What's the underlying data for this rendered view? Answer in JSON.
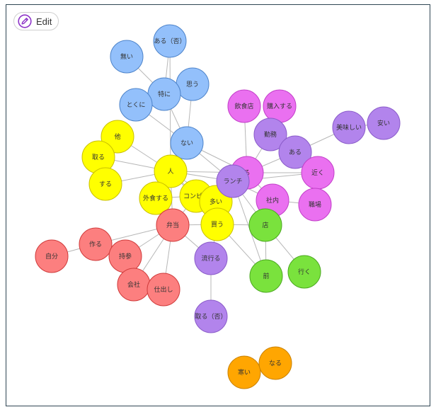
{
  "toolbar": {
    "edit_label": "Edit",
    "edit_icon": "pencil-icon"
  },
  "palette": {
    "blue": "#93c0fb",
    "yellow": "#ffff00",
    "red": "#fc7f7f",
    "purple": "#b284ec",
    "pink": "#ea70f0",
    "green": "#7ae23d",
    "orange": "#ffa601",
    "edge": "#b7b7b7"
  },
  "nodes": [
    {
      "id": "naii",
      "label": "無い",
      "group": "blue"
    },
    {
      "id": "aru_noun",
      "label": "ある（否）",
      "group": "blue"
    },
    {
      "id": "omou",
      "label": "思う",
      "group": "blue"
    },
    {
      "id": "tokuni_k",
      "label": "特に",
      "group": "blue"
    },
    {
      "id": "tokuni",
      "label": "とくに",
      "group": "blue"
    },
    {
      "id": "nai",
      "label": "ない",
      "group": "blue"
    },
    {
      "id": "inshokuten",
      "label": "飲食店",
      "group": "pink"
    },
    {
      "id": "kounyu",
      "label": "購入する",
      "group": "pink"
    },
    {
      "id": "kinmu",
      "label": "勤務",
      "group": "purple"
    },
    {
      "id": "aru",
      "label": "ある",
      "group": "purple"
    },
    {
      "id": "oishii",
      "label": "美味しい",
      "group": "purple"
    },
    {
      "id": "yasui",
      "label": "安い",
      "group": "purple"
    },
    {
      "id": "hoka",
      "label": "他",
      "group": "yellow"
    },
    {
      "id": "toru",
      "label": "取る",
      "group": "yellow"
    },
    {
      "id": "suru",
      "label": "する",
      "group": "yellow"
    },
    {
      "id": "hito",
      "label": "人",
      "group": "yellow"
    },
    {
      "id": "gaishoku",
      "label": "外食する",
      "group": "yellow"
    },
    {
      "id": "konbini",
      "label": "コンビニ",
      "group": "yellow"
    },
    {
      "id": "ooi",
      "label": "多い",
      "group": "yellow"
    },
    {
      "id": "kau",
      "label": "買う",
      "group": "yellow"
    },
    {
      "id": "iru",
      "label": "る",
      "group": "pink"
    },
    {
      "id": "lunch",
      "label": "ランチ",
      "group": "purple"
    },
    {
      "id": "chikaku",
      "label": "近く",
      "group": "pink"
    },
    {
      "id": "shanai",
      "label": "社内",
      "group": "pink"
    },
    {
      "id": "shokuba",
      "label": "職場",
      "group": "pink"
    },
    {
      "id": "mise",
      "label": "店",
      "group": "green"
    },
    {
      "id": "mae",
      "label": "前",
      "group": "green"
    },
    {
      "id": "iku",
      "label": "行く",
      "group": "green"
    },
    {
      "id": "bento",
      "label": "弁当",
      "group": "red"
    },
    {
      "id": "tsukuru",
      "label": "作る",
      "group": "red"
    },
    {
      "id": "jibun",
      "label": "自分",
      "group": "red"
    },
    {
      "id": "jisan",
      "label": "持参",
      "group": "red"
    },
    {
      "id": "kaisha",
      "label": "会社",
      "group": "red"
    },
    {
      "id": "shidashi",
      "label": "仕出し",
      "group": "red"
    },
    {
      "id": "hayaru",
      "label": "流行る",
      "group": "purple"
    },
    {
      "id": "toru_neg",
      "label": "取る（否）",
      "group": "purple"
    },
    {
      "id": "samui",
      "label": "寒い",
      "group": "orange"
    },
    {
      "id": "naru",
      "label": "なる",
      "group": "orange"
    }
  ],
  "edges": [
    [
      "naii",
      "tokuni_k"
    ],
    [
      "aru_noun",
      "tokuni_k"
    ],
    [
      "omou",
      "tokuni_k"
    ],
    [
      "tokuni",
      "tokuni_k"
    ],
    [
      "tokuni_k",
      "nai"
    ],
    [
      "omou",
      "nai"
    ],
    [
      "tokuni",
      "nai"
    ],
    [
      "aru_noun",
      "hito"
    ],
    [
      "nai",
      "hito"
    ],
    [
      "nai",
      "iru"
    ],
    [
      "nai",
      "lunch"
    ],
    [
      "hoka",
      "hito"
    ],
    [
      "toru",
      "hito"
    ],
    [
      "suru",
      "hito"
    ],
    [
      "toru",
      "suru"
    ],
    [
      "hito",
      "gaishoku"
    ],
    [
      "hito",
      "konbini"
    ],
    [
      "hito",
      "lunch"
    ],
    [
      "hito",
      "iru"
    ],
    [
      "hito",
      "bento"
    ],
    [
      "hito",
      "ooi"
    ],
    [
      "gaishoku",
      "konbini"
    ],
    [
      "gaishoku",
      "bento"
    ],
    [
      "konbini",
      "ooi"
    ],
    [
      "konbini",
      "kau"
    ],
    [
      "konbini",
      "bento"
    ],
    [
      "konbini",
      "lunch"
    ],
    [
      "ooi",
      "kau"
    ],
    [
      "ooi",
      "lunch"
    ],
    [
      "kau",
      "bento"
    ],
    [
      "kau",
      "mise"
    ],
    [
      "inshokuten",
      "iru"
    ],
    [
      "kounyu",
      "kinmu"
    ],
    [
      "kinmu",
      "iru"
    ],
    [
      "kinmu",
      "aru"
    ],
    [
      "aru",
      "iru"
    ],
    [
      "aru",
      "oishii"
    ],
    [
      "oishii",
      "yasui"
    ],
    [
      "iru",
      "chikaku"
    ],
    [
      "iru",
      "shanai"
    ],
    [
      "iru",
      "lunch"
    ],
    [
      "lunch",
      "shanai"
    ],
    [
      "lunch",
      "chikaku"
    ],
    [
      "shanai",
      "shokuba"
    ],
    [
      "shanai",
      "mise"
    ],
    [
      "lunch",
      "mise"
    ],
    [
      "mise",
      "iku"
    ],
    [
      "lunch",
      "mae"
    ],
    [
      "mise",
      "mae"
    ],
    [
      "bento",
      "tsukuru"
    ],
    [
      "bento",
      "jisan"
    ],
    [
      "bento",
      "kaisha"
    ],
    [
      "bento",
      "shidashi"
    ],
    [
      "bento",
      "hayaru"
    ],
    [
      "tsukuru",
      "jibun"
    ],
    [
      "tsukuru",
      "jisan"
    ],
    [
      "jisan",
      "kaisha"
    ],
    [
      "kaisha",
      "shidashi"
    ],
    [
      "hayaru",
      "toru_neg"
    ],
    [
      "hayaru",
      "kau"
    ],
    [
      "hito",
      "mae"
    ],
    [
      "samui",
      "naru"
    ]
  ]
}
